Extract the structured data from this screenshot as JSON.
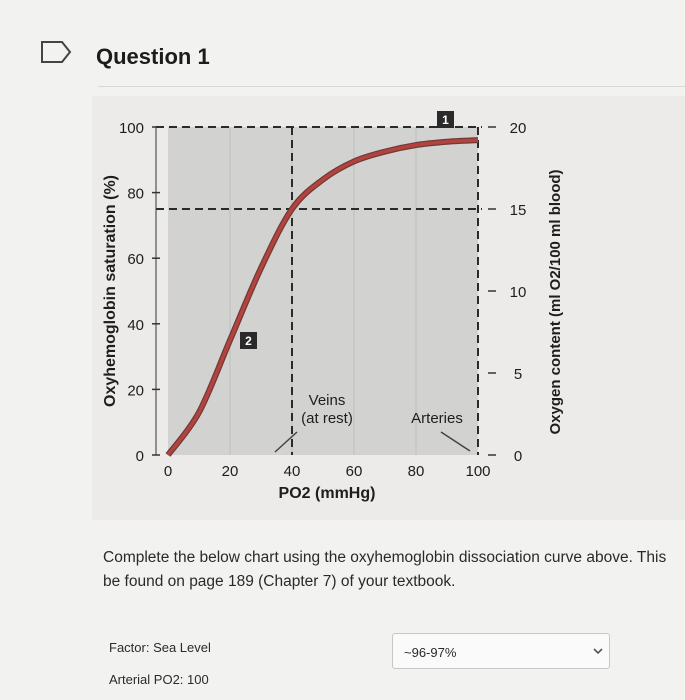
{
  "question": {
    "title": "Question 1"
  },
  "icons": {
    "flag": "bookmark-icon",
    "dropdown": "chevron-down-icon"
  },
  "chart_data": {
    "type": "line",
    "x": [
      0,
      10,
      20,
      30,
      40,
      50,
      60,
      70,
      80,
      90,
      100
    ],
    "series": [
      {
        "values": [
          0,
          13,
          35,
          57,
          75,
          84,
          89.5,
          92.5,
          94.5,
          95.5,
          96
        ]
      }
    ],
    "xlabel": "PO2 (mmHg)",
    "ylabel": "Oxyhemoglobin saturation (%)",
    "y2label": "Oxygen content (ml O2/100 ml blood)",
    "xticks": [
      "0",
      "20",
      "40",
      "60",
      "80",
      "100"
    ],
    "yticks": [
      "0",
      "20",
      "40",
      "60",
      "80",
      "100"
    ],
    "y2ticks": [
      "0",
      "5",
      "10",
      "15",
      "20"
    ],
    "xlim": [
      0,
      100
    ],
    "ylim": [
      0,
      100
    ],
    "y2lim": [
      0,
      20
    ],
    "grid": true,
    "reference_lines": [
      {
        "axis": "y",
        "value": 100
      },
      {
        "axis": "y",
        "value": 75
      },
      {
        "axis": "x",
        "value": 40
      },
      {
        "axis": "x",
        "value": 100
      }
    ],
    "annotations": {
      "marker1": "1",
      "marker2": "2",
      "veins_line1": "Veins",
      "veins_line2": "(at rest)",
      "arteries": "Arteries"
    },
    "colors": {
      "curve": "#b2433f",
      "plot_bg": "#d2d2d0",
      "outer_bg": "#ecebea",
      "marker_bg": "#2a2a2a"
    }
  },
  "instructions": {
    "line1": "Complete the below chart using the oxyhemoglobin dissociation curve above. This",
    "line2": "be found on page 189 (Chapter 7) of your textbook."
  },
  "form": {
    "factor_label": "Factor: Sea Level",
    "po2_label": "Arterial PO2: 100",
    "answer_value": "~96-97%"
  }
}
